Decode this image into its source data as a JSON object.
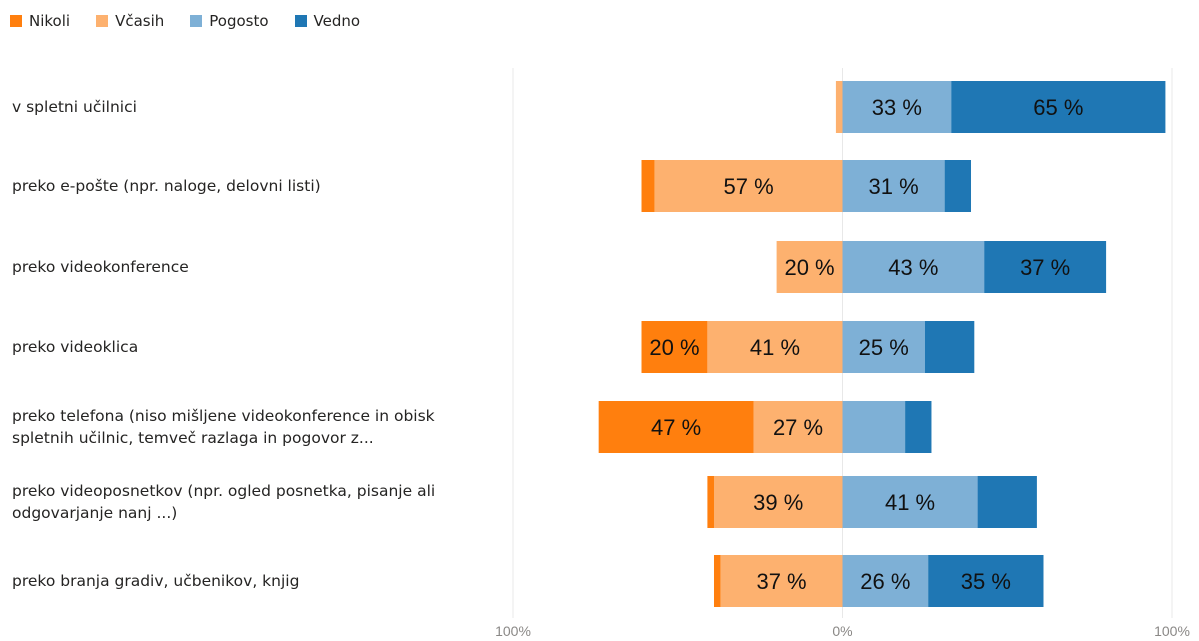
{
  "chart_data": {
    "type": "bar",
    "stacked": "diverging",
    "series": [
      {
        "name": "Nikoli",
        "color": "#ff7f0e"
      },
      {
        "name": "Včasih",
        "color": "#fdb16f"
      },
      {
        "name": "Pogosto",
        "color": "#7eb0d6"
      },
      {
        "name": "Vedno",
        "color": "#1f77b4"
      }
    ],
    "categories": [
      [
        "v spletni učilnici"
      ],
      [
        "preko e-pošte (npr. naloge, delovni listi)"
      ],
      [
        "preko videokonference"
      ],
      [
        "preko videoklica"
      ],
      [
        "preko telefona (niso mišljene videokonference in obisk",
        "spletnih učilnic, temveč razlaga in pogovor z..."
      ],
      [
        "preko videoposnetkov (npr. ogled posnetka, pisanje ali",
        "odgovarjanje nanj ...)"
      ],
      [
        "preko branja gradiv, učbenikov, knjig"
      ]
    ],
    "rows": [
      {
        "values": [
          0,
          2,
          33,
          65
        ],
        "labels": [
          "",
          "",
          "33 %",
          "65 %"
        ]
      },
      {
        "values": [
          4,
          57,
          31,
          8
        ],
        "labels": [
          "",
          "57 %",
          "31 %",
          ""
        ]
      },
      {
        "values": [
          0,
          20,
          43,
          37
        ],
        "labels": [
          "",
          "20 %",
          "43 %",
          "37 %"
        ]
      },
      {
        "values": [
          20,
          41,
          25,
          15
        ],
        "labels": [
          "20 %",
          "41 %",
          "25 %",
          ""
        ]
      },
      {
        "values": [
          47,
          27,
          19,
          8
        ],
        "labels": [
          "47 %",
          "27 %",
          "",
          ""
        ]
      },
      {
        "values": [
          2,
          39,
          41,
          18
        ],
        "labels": [
          "",
          "39 %",
          "41 %",
          ""
        ]
      },
      {
        "values": [
          2,
          37,
          26,
          35
        ],
        "labels": [
          "",
          "37 %",
          "26 %",
          "35 %"
        ]
      }
    ],
    "xlim": [
      -100,
      100
    ],
    "x_ticks": [
      "100%",
      "0%",
      "100%"
    ],
    "gridlines": "vertical",
    "legend": "top-left"
  }
}
